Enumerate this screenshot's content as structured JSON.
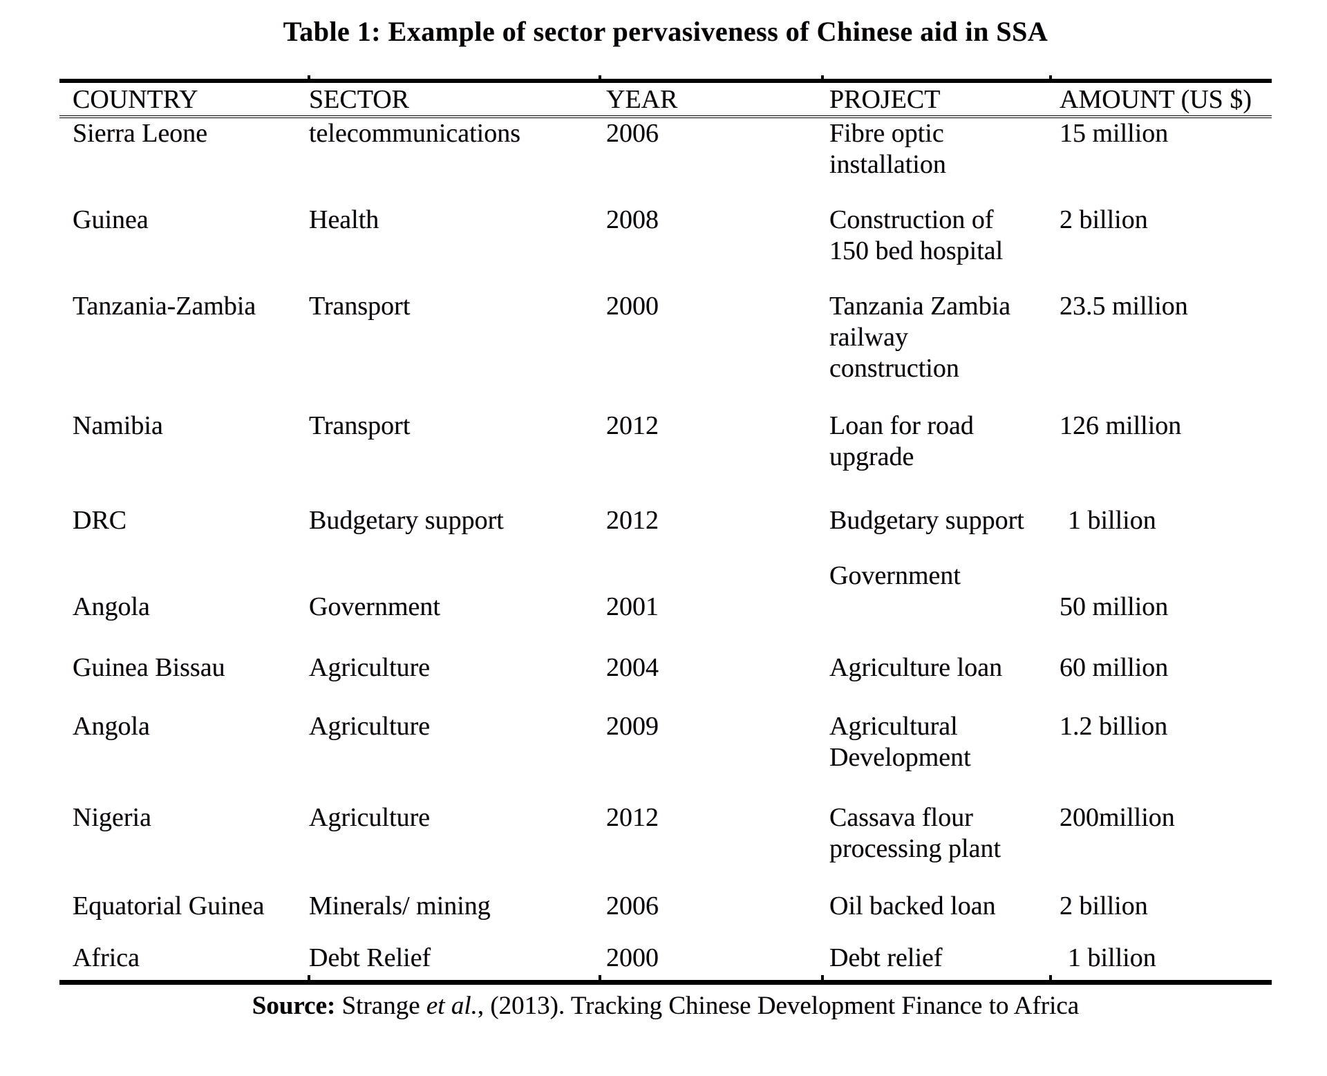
{
  "title": "Table 1: Example of sector pervasiveness of Chinese aid in SSA",
  "table": {
    "headers": {
      "country": "COUNTRY",
      "sector": "SECTOR",
      "year": "YEAR",
      "project": "PROJECT",
      "amount": "AMOUNT (US $)"
    },
    "rows": [
      {
        "country": "Sierra Leone",
        "sector": "telecommunications",
        "year": "2006",
        "project": "Fibre optic\ninstallation",
        "amount": "15 million"
      },
      {
        "country": "Guinea",
        "sector": "Health",
        "year": "2008",
        "project": "Construction of\n150 bed hospital",
        "amount": "2 billion"
      },
      {
        "country": "Tanzania-Zambia",
        "sector": "Transport",
        "year": "2000",
        "project": "Tanzania Zambia\nrailway\nconstruction",
        "amount": "23.5 million"
      },
      {
        "country": "Namibia",
        "sector": "Transport",
        "year": "2012",
        "project": "Loan for road\nupgrade",
        "amount": "126 million"
      },
      {
        "country": "DRC",
        "sector": "Budgetary support",
        "year": "2012",
        "project": "Budgetary support",
        "amount": "1 billion"
      },
      {
        "country": "Angola",
        "sector": "Government",
        "year": "2001",
        "project": "Government",
        "amount": "50 million"
      },
      {
        "country": "Guinea Bissau",
        "sector": "Agriculture",
        "year": "2004",
        "project": "Agriculture loan",
        "amount": "60 million"
      },
      {
        "country": "Angola",
        "sector": "Agriculture",
        "year": "2009",
        "project": "Agricultural\nDevelopment",
        "amount": "1.2 billion"
      },
      {
        "country": "Nigeria",
        "sector": "Agriculture",
        "year": "2012",
        "project": "Cassava flour\nprocessing plant",
        "amount": "200million"
      },
      {
        "country": "Equatorial Guinea",
        "sector": "Minerals/ mining",
        "year": "2006",
        "project": "Oil backed loan",
        "amount": "2 billion"
      },
      {
        "country": "Africa",
        "sector": "Debt Relief",
        "year": "2000",
        "project": "Debt relief",
        "amount": "1 billion"
      }
    ]
  },
  "source": {
    "label": "Source:",
    "author": " Strange ",
    "etal": "et al.",
    "rest": ", (2013). Tracking Chinese Development Finance to Africa"
  }
}
